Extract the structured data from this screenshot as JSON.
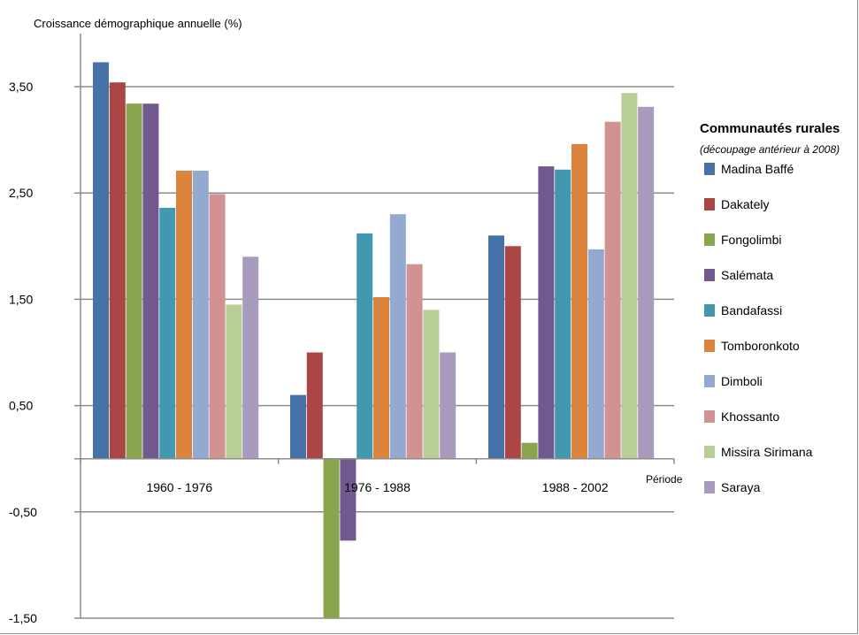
{
  "chart_data": {
    "type": "bar",
    "ylabel": "Croissance démographique annuelle (%)",
    "xlabel": "Période",
    "ylim": [
      -1.5,
      3.5
    ],
    "yticks": [
      -1.5,
      -0.5,
      0.5,
      1.5,
      2.5,
      3.5
    ],
    "ytick_labels": [
      "-1,50",
      "-0,50",
      "0,50",
      "1,50",
      "2,50",
      "3,50"
    ],
    "grid": true,
    "legend_position": "right",
    "legend_title": "Communautés rurales",
    "legend_subtitle": "(découpage antérieur à 2008)",
    "categories": [
      "1960 - 1976",
      "1976 - 1988",
      "1988 - 2002"
    ],
    "series": [
      {
        "name": "Madina Baffé",
        "color": "#4672A8",
        "values": [
          3.73,
          0.6,
          2.1
        ]
      },
      {
        "name": "Dakately",
        "color": "#AA4643",
        "values": [
          3.54,
          1.0,
          2.0
        ]
      },
      {
        "name": "Fongolimbi",
        "color": "#89A54E",
        "values": [
          3.34,
          -1.5,
          0.15
        ]
      },
      {
        "name": "Salémata",
        "color": "#71588F",
        "values": [
          3.34,
          -0.77,
          2.75
        ]
      },
      {
        "name": "Bandafassi",
        "color": "#4198AF",
        "values": [
          2.36,
          null,
          2.72
        ]
      },
      {
        "name": "Tomboronkoto",
        "color": "#DB843D",
        "values": [
          2.71,
          1.52,
          2.96
        ]
      },
      {
        "name": "Dimboli",
        "color": "#93A9CF",
        "values": [
          2.71,
          2.3,
          1.97
        ]
      },
      {
        "name": "Khossanto",
        "color": "#D19392",
        "values": [
          2.49,
          1.83,
          3.17
        ]
      },
      {
        "name": "Missira Sirimana",
        "color": "#B9CD96",
        "values": [
          1.45,
          1.4,
          3.44
        ]
      },
      {
        "name": "Saraya",
        "color": "#A99BBD",
        "values": [
          1.9,
          1.0,
          3.31
        ]
      }
    ],
    "bandafassi_1976_1988": 2.12
  }
}
